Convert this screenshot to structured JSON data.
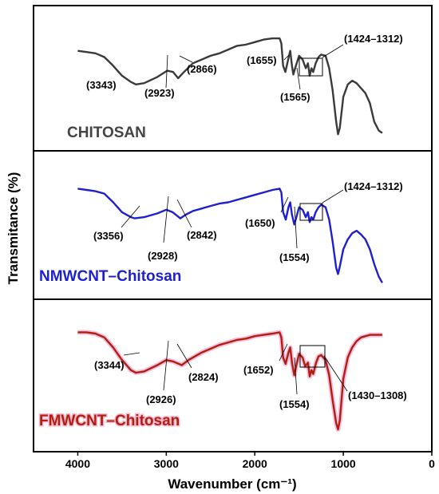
{
  "chart_data": {
    "type": "line",
    "xlabel": "Wavenumber (cm⁻¹)",
    "ylabel": "Transmitance (%)",
    "xlim": [
      4500,
      0
    ],
    "x_ticks": [
      "4000",
      "3000",
      "2000",
      "1000",
      "0"
    ],
    "grid": false,
    "panels": [
      {
        "name": "CHITOSAN",
        "color": "#3a3a3a",
        "series": [
          {
            "values": [
              [
                4000,
                0.72
              ],
              [
                3900,
                0.71
              ],
              [
                3800,
                0.7
              ],
              [
                3700,
                0.67
              ],
              [
                3600,
                0.6
              ],
              [
                3500,
                0.52
              ],
              [
                3400,
                0.47
              ],
              [
                3343,
                0.45
              ],
              [
                3250,
                0.46
              ],
              [
                3100,
                0.51
              ],
              [
                2990,
                0.56
              ],
              [
                2923,
                0.55
              ],
              [
                2866,
                0.5
              ],
              [
                2800,
                0.55
              ],
              [
                2700,
                0.62
              ],
              [
                2600,
                0.65
              ],
              [
                2500,
                0.68
              ],
              [
                2400,
                0.7
              ],
              [
                2300,
                0.73
              ],
              [
                2200,
                0.76
              ],
              [
                2100,
                0.77
              ],
              [
                2000,
                0.79
              ],
              [
                1900,
                0.81
              ],
              [
                1800,
                0.82
              ],
              [
                1720,
                0.82
              ],
              [
                1700,
                0.78
              ],
              [
                1680,
                0.6
              ],
              [
                1655,
                0.55
              ],
              [
                1620,
                0.66
              ],
              [
                1600,
                0.72
              ],
              [
                1580,
                0.6
              ],
              [
                1565,
                0.53
              ],
              [
                1540,
                0.59
              ],
              [
                1500,
                0.68
              ],
              [
                1460,
                0.65
              ],
              [
                1424,
                0.58
              ],
              [
                1400,
                0.62
              ],
              [
                1380,
                0.52
              ],
              [
                1360,
                0.58
              ],
              [
                1340,
                0.55
              ],
              [
                1312,
                0.62
              ],
              [
                1280,
                0.67
              ],
              [
                1250,
                0.69
              ],
              [
                1200,
                0.68
              ],
              [
                1160,
                0.58
              ],
              [
                1120,
                0.4
              ],
              [
                1080,
                0.15
              ],
              [
                1060,
                0.05
              ],
              [
                1040,
                0.1
              ],
              [
                1000,
                0.35
              ],
              [
                950,
                0.45
              ],
              [
                900,
                0.48
              ],
              [
                850,
                0.46
              ],
              [
                800,
                0.42
              ],
              [
                750,
                0.38
              ],
              [
                700,
                0.3
              ],
              [
                650,
                0.15
              ],
              [
                600,
                0.08
              ],
              [
                560,
                0.06
              ]
            ]
          }
        ],
        "annotations": [
          "(3343)",
          "(2923)",
          "(2866)",
          "(1655)",
          "(1565)",
          "(1424–1312)"
        ]
      },
      {
        "name": "NMWCNT–Chitosan",
        "color": "#1f1fd0",
        "series": [
          {
            "values": [
              [
                4000,
                0.81
              ],
              [
                3900,
                0.8
              ],
              [
                3800,
                0.79
              ],
              [
                3700,
                0.77
              ],
              [
                3600,
                0.7
              ],
              [
                3500,
                0.62
              ],
              [
                3400,
                0.58
              ],
              [
                3356,
                0.57
              ],
              [
                3250,
                0.58
              ],
              [
                3100,
                0.61
              ],
              [
                3000,
                0.64
              ],
              [
                2928,
                0.62
              ],
              [
                2842,
                0.57
              ],
              [
                2780,
                0.6
              ],
              [
                2700,
                0.63
              ],
              [
                2600,
                0.65
              ],
              [
                2500,
                0.67
              ],
              [
                2400,
                0.69
              ],
              [
                2300,
                0.7
              ],
              [
                2200,
                0.72
              ],
              [
                2100,
                0.74
              ],
              [
                2000,
                0.76
              ],
              [
                1900,
                0.78
              ],
              [
                1800,
                0.8
              ],
              [
                1720,
                0.81
              ],
              [
                1700,
                0.78
              ],
              [
                1680,
                0.62
              ],
              [
                1650,
                0.56
              ],
              [
                1620,
                0.66
              ],
              [
                1600,
                0.7
              ],
              [
                1580,
                0.6
              ],
              [
                1554,
                0.52
              ],
              [
                1530,
                0.58
              ],
              [
                1500,
                0.66
              ],
              [
                1460,
                0.64
              ],
              [
                1424,
                0.58
              ],
              [
                1400,
                0.62
              ],
              [
                1380,
                0.54
              ],
              [
                1360,
                0.58
              ],
              [
                1340,
                0.56
              ],
              [
                1312,
                0.62
              ],
              [
                1280,
                0.66
              ],
              [
                1250,
                0.68
              ],
              [
                1200,
                0.66
              ],
              [
                1160,
                0.56
              ],
              [
                1120,
                0.38
              ],
              [
                1080,
                0.17
              ],
              [
                1060,
                0.12
              ],
              [
                1040,
                0.18
              ],
              [
                1000,
                0.32
              ],
              [
                950,
                0.4
              ],
              [
                900,
                0.45
              ],
              [
                850,
                0.47
              ],
              [
                800,
                0.44
              ],
              [
                750,
                0.4
              ],
              [
                700,
                0.32
              ],
              [
                650,
                0.2
              ],
              [
                600,
                0.1
              ],
              [
                560,
                0.05
              ]
            ]
          }
        ],
        "annotations": [
          "(3356)",
          "(2928)",
          "(2842)",
          "(1650)",
          "(1554)",
          "(1424–1312)"
        ]
      },
      {
        "name": "FMWCNT–Chitosan",
        "color": "#b02010",
        "series": [
          {
            "values": [
              [
                4000,
                0.82
              ],
              [
                3900,
                0.82
              ],
              [
                3800,
                0.81
              ],
              [
                3700,
                0.78
              ],
              [
                3600,
                0.7
              ],
              [
                3500,
                0.6
              ],
              [
                3400,
                0.52
              ],
              [
                3344,
                0.5
              ],
              [
                3250,
                0.51
              ],
              [
                3100,
                0.56
              ],
              [
                3000,
                0.6
              ],
              [
                2926,
                0.59
              ],
              [
                2824,
                0.56
              ],
              [
                2750,
                0.6
              ],
              [
                2600,
                0.66
              ],
              [
                2500,
                0.69
              ],
              [
                2400,
                0.72
              ],
              [
                2300,
                0.74
              ],
              [
                2200,
                0.76
              ],
              [
                2100,
                0.77
              ],
              [
                2000,
                0.79
              ],
              [
                1900,
                0.8
              ],
              [
                1800,
                0.81
              ],
              [
                1720,
                0.82
              ],
              [
                1700,
                0.78
              ],
              [
                1680,
                0.62
              ],
              [
                1652,
                0.57
              ],
              [
                1620,
                0.66
              ],
              [
                1600,
                0.7
              ],
              [
                1580,
                0.58
              ],
              [
                1554,
                0.48
              ],
              [
                1530,
                0.56
              ],
              [
                1500,
                0.65
              ],
              [
                1460,
                0.62
              ],
              [
                1430,
                0.55
              ],
              [
                1400,
                0.58
              ],
              [
                1380,
                0.47
              ],
              [
                1360,
                0.52
              ],
              [
                1340,
                0.49
              ],
              [
                1308,
                0.58
              ],
              [
                1280,
                0.63
              ],
              [
                1250,
                0.64
              ],
              [
                1200,
                0.6
              ],
              [
                1160,
                0.48
              ],
              [
                1120,
                0.28
              ],
              [
                1080,
                0.1
              ],
              [
                1060,
                0.05
              ],
              [
                1040,
                0.12
              ],
              [
                1000,
                0.45
              ],
              [
                950,
                0.62
              ],
              [
                900,
                0.7
              ],
              [
                850,
                0.75
              ],
              [
                800,
                0.78
              ],
              [
                750,
                0.79
              ],
              [
                700,
                0.8
              ],
              [
                650,
                0.8
              ],
              [
                600,
                0.8
              ],
              [
                560,
                0.8
              ]
            ]
          }
        ],
        "annotations": [
          "(3344)",
          "(2926)",
          "(2824)",
          "(1652)",
          "(1554)",
          "(1430–1308)"
        ]
      }
    ]
  }
}
